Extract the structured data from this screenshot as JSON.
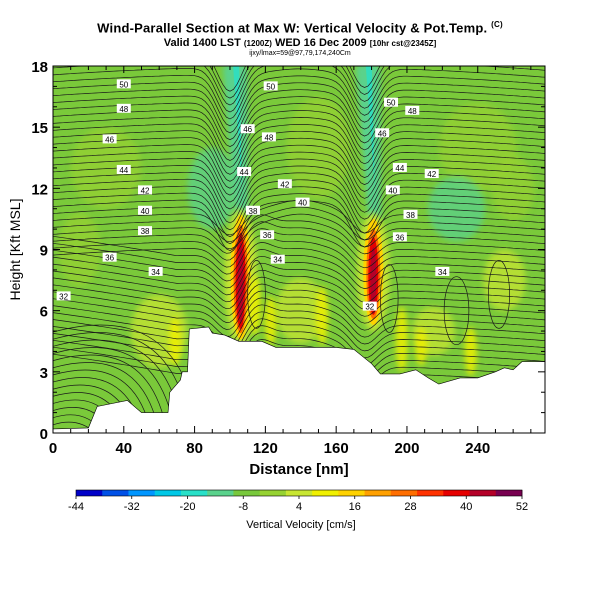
{
  "title": {
    "main": "Wind-Parallel Section at Max W: Vertical Velocity & Pot.Temp.",
    "copyright": "(C)",
    "valid_prefix": "Valid 1400 LST",
    "valid_utc": "(1200Z)",
    "valid_date": "WED 16 Dec 2009",
    "valid_suffix": "[10hr cst@2345Z]",
    "location": "ijxy/lmax=59@97,79,174,240Cm"
  },
  "chart_data": {
    "type": "heatmap",
    "xlabel": "Distance [nm]",
    "ylabel": "Height [Kft MSL]",
    "xlim": [
      0,
      278
    ],
    "ylim": [
      0,
      18
    ],
    "x_ticks": [
      0,
      40,
      80,
      120,
      160,
      200,
      240
    ],
    "y_ticks": [
      0,
      3,
      6,
      9,
      12,
      15,
      18
    ],
    "colorbar": {
      "label": "Vertical Velocity [cm/s]",
      "tick_labels": [
        -44,
        -32,
        -20,
        -8,
        4,
        16,
        28,
        40,
        52
      ],
      "colors": [
        "#0000c8",
        "#0050e6",
        "#0096ff",
        "#00c8e6",
        "#28e0c8",
        "#5ad28c",
        "#78c83c",
        "#96d232",
        "#c8e632",
        "#f0f000",
        "#ffd200",
        "#ffa000",
        "#ff6e00",
        "#ff3200",
        "#e60000",
        "#b40028",
        "#780050"
      ]
    },
    "background_color": "#7ac93a",
    "terrain_top": [
      [
        0,
        0.2
      ],
      [
        20,
        0.25
      ],
      [
        25,
        1.3
      ],
      [
        42,
        1.6
      ],
      [
        50,
        1.0
      ],
      [
        65,
        1.0
      ],
      [
        66,
        2.0
      ],
      [
        72,
        2.6
      ],
      [
        73,
        3.0
      ],
      [
        76,
        3.0
      ],
      [
        77,
        5.1
      ],
      [
        88,
        5.2
      ],
      [
        90,
        4.9
      ],
      [
        97,
        4.8
      ],
      [
        105,
        4.5
      ],
      [
        118,
        4.5
      ],
      [
        126,
        4.2
      ],
      [
        150,
        4.2
      ],
      [
        160,
        4.2
      ],
      [
        170,
        4.1
      ],
      [
        180,
        3.4
      ],
      [
        185,
        2.9
      ],
      [
        196,
        2.9
      ],
      [
        205,
        3.1
      ],
      [
        212,
        2.7
      ],
      [
        218,
        2.4
      ],
      [
        230,
        2.7
      ],
      [
        240,
        2.7
      ],
      [
        250,
        3.0
      ],
      [
        255,
        3.2
      ],
      [
        260,
        3.1
      ],
      [
        265,
        3.5
      ],
      [
        275,
        3.5
      ]
    ],
    "updraft_cores": [
      {
        "x": 106,
        "bottom": 4.8,
        "top": 10.5,
        "peak": 52
      },
      {
        "x": 181,
        "bottom": 5.5,
        "top": 10.3,
        "peak": 52
      }
    ],
    "downdraft_cores": [
      {
        "x": 104,
        "bottom": 10.5,
        "top": 18,
        "peak": -20
      },
      {
        "x": 179,
        "bottom": 10.5,
        "top": 18,
        "peak": -20
      }
    ],
    "isentrope_labels": [
      {
        "text": "50",
        "x": 40,
        "y": 17.1
      },
      {
        "text": "48",
        "x": 40,
        "y": 15.9
      },
      {
        "text": "46",
        "x": 32,
        "y": 14.4
      },
      {
        "text": "44",
        "x": 40,
        "y": 12.9
      },
      {
        "text": "42",
        "x": 52,
        "y": 11.9
      },
      {
        "text": "40",
        "x": 52,
        "y": 10.9
      },
      {
        "text": "38",
        "x": 52,
        "y": 9.9
      },
      {
        "text": "36",
        "x": 32,
        "y": 8.6
      },
      {
        "text": "34",
        "x": 58,
        "y": 7.9
      },
      {
        "text": "32",
        "x": 6,
        "y": 6.7
      },
      {
        "text": "50",
        "x": 123,
        "y": 17.0
      },
      {
        "text": "48",
        "x": 122,
        "y": 14.5
      },
      {
        "text": "46",
        "x": 110,
        "y": 14.9
      },
      {
        "text": "44",
        "x": 108,
        "y": 12.8
      },
      {
        "text": "42",
        "x": 131,
        "y": 12.2
      },
      {
        "text": "40",
        "x": 141,
        "y": 11.3
      },
      {
        "text": "38",
        "x": 113,
        "y": 10.9
      },
      {
        "text": "36",
        "x": 121,
        "y": 9.7
      },
      {
        "text": "34",
        "x": 127,
        "y": 8.5
      },
      {
        "text": "50",
        "x": 191,
        "y": 16.2
      },
      {
        "text": "48",
        "x": 203,
        "y": 15.8
      },
      {
        "text": "46",
        "x": 186,
        "y": 14.7
      },
      {
        "text": "44",
        "x": 196,
        "y": 13.0
      },
      {
        "text": "42",
        "x": 214,
        "y": 12.7
      },
      {
        "text": "40",
        "x": 192,
        "y": 11.9
      },
      {
        "text": "38",
        "x": 202,
        "y": 10.7
      },
      {
        "text": "36",
        "x": 196,
        "y": 9.6
      },
      {
        "text": "34",
        "x": 220,
        "y": 7.9
      },
      {
        "text": "32",
        "x": 179,
        "y": 6.2
      }
    ]
  }
}
